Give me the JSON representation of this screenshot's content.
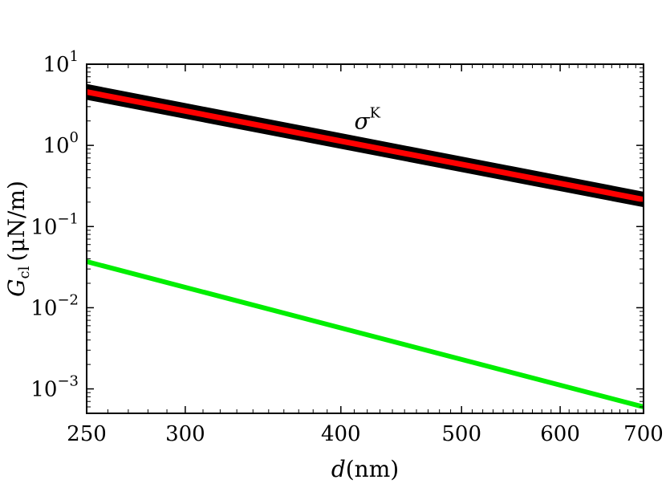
{
  "chart_data": {
    "type": "line",
    "title": "",
    "xlabel": {
      "var": "d",
      "unit": "(nm)"
    },
    "ylabel": {
      "var": "G",
      "sub": "cl",
      "unit": "(μN/m)"
    },
    "xscale": "log",
    "yscale": "log",
    "xlim": [
      250,
      700
    ],
    "ylim": [
      0.0005,
      10
    ],
    "x_ticks": [
      250,
      300,
      400,
      500,
      600,
      700
    ],
    "x_tick_labels": [
      "250",
      "300",
      "400",
      "500",
      "600",
      "700"
    ],
    "y_ticks": [
      {
        "value": 10,
        "base": "10",
        "exp": "1"
      },
      {
        "value": 1,
        "base": "10",
        "exp": "0"
      },
      {
        "value": 0.1,
        "base": "10",
        "exp": "−1"
      },
      {
        "value": 0.01,
        "base": "10",
        "exp": "−2"
      },
      {
        "value": 0.001,
        "base": "10",
        "exp": "−3"
      }
    ],
    "grid": false,
    "annotation": {
      "text": "σ",
      "sup": "K",
      "x": 410,
      "y": 1.6
    },
    "series": [
      {
        "x": [
          250,
          700
        ],
        "y": [
          5.2,
          0.245
        ],
        "color": "#000000",
        "width": 8
      },
      {
        "x": [
          250,
          700
        ],
        "y": [
          4.0,
          0.19
        ],
        "color": "#000000",
        "width": 8
      },
      {
        "x": [
          250,
          700
        ],
        "y": [
          4.55,
          0.215
        ],
        "color": "#ff0000",
        "width": 7
      },
      {
        "x": [
          250,
          700
        ],
        "y": [
          0.037,
          0.0006
        ],
        "color": "#00ee00",
        "width": 6
      }
    ]
  }
}
